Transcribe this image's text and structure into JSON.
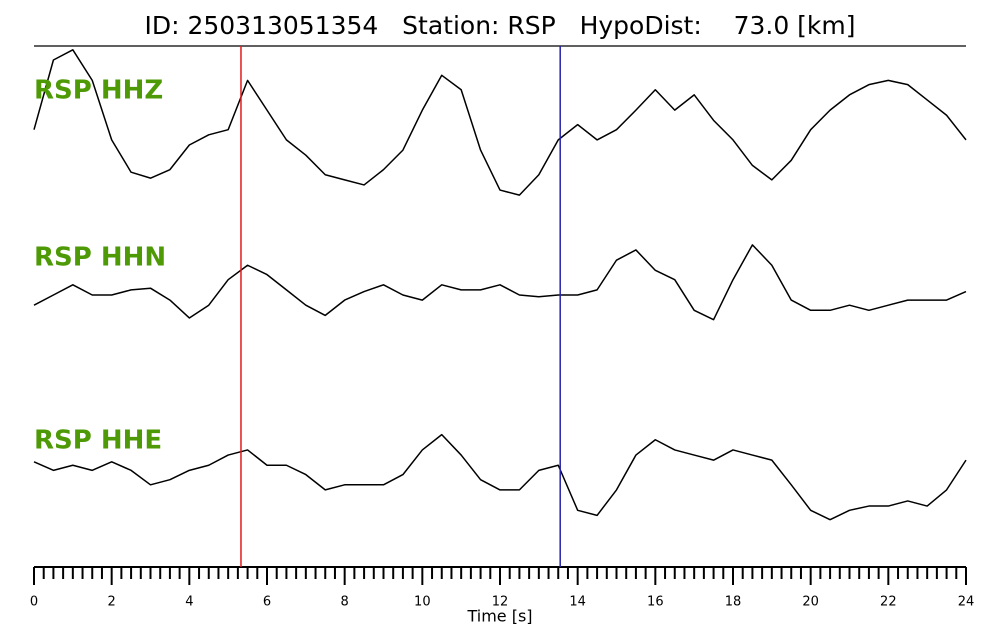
{
  "chart_data": {
    "type": "line",
    "title": "ID: 250313051354   Station: RSP   HypoDist:    73.0 [km]",
    "xlabel": "Time [s]",
    "layout": "stacked",
    "label_color": "#4e9a06",
    "xlim": [
      0,
      24
    ],
    "xticks": [
      0,
      2,
      4,
      6,
      8,
      10,
      12,
      14,
      16,
      18,
      20,
      22,
      24
    ],
    "xminor": 0.25,
    "ylim": [
      -1,
      1
    ],
    "markers": [
      {
        "x": 5.33,
        "color": "#e41a1c"
      },
      {
        "x": 13.55,
        "color": "#2222aa"
      }
    ],
    "x": [
      0,
      0.5,
      1,
      1.5,
      2,
      2.5,
      3,
      3.5,
      4,
      4.5,
      5,
      5.5,
      6,
      6.5,
      7,
      7.5,
      8,
      8.5,
      9,
      9.5,
      10,
      10.5,
      11,
      11.5,
      12,
      12.5,
      13,
      13.5,
      14,
      14.5,
      15,
      15.5,
      16,
      16.5,
      17,
      17.5,
      18,
      18.5,
      19,
      19.5,
      20,
      20.5,
      21,
      21.5,
      22,
      22.5,
      23,
      23.5,
      24
    ],
    "series": [
      {
        "name": "RSP HHZ",
        "color": "#000000",
        "values": [
          -0.02,
          0.8,
          0.92,
          0.56,
          -0.14,
          -0.52,
          -0.59,
          -0.49,
          -0.2,
          -0.08,
          -0.02,
          0.56,
          0.21,
          -0.14,
          -0.32,
          -0.55,
          -0.61,
          -0.67,
          -0.49,
          -0.26,
          0.21,
          0.62,
          0.45,
          -0.26,
          -0.73,
          -0.79,
          -0.55,
          -0.14,
          0.04,
          -0.14,
          -0.02,
          0.21,
          0.45,
          0.21,
          0.39,
          0.09,
          -0.14,
          -0.44,
          -0.61,
          -0.38,
          -0.02,
          0.21,
          0.39,
          0.51,
          0.56,
          0.51,
          0.33,
          0.15,
          -0.14
        ]
      },
      {
        "name": "RSP HHN",
        "color": "#000000",
        "values": [
          -0.12,
          0,
          0.12,
          0,
          0,
          0.06,
          0.08,
          -0.06,
          -0.27,
          -0.12,
          0.18,
          0.35,
          0.24,
          0.06,
          -0.12,
          -0.24,
          -0.06,
          0.04,
          0.12,
          0,
          -0.06,
          0.12,
          0.06,
          0.06,
          0.12,
          0,
          -0.02,
          0,
          0,
          0.06,
          0.41,
          0.53,
          0.29,
          0.18,
          -0.18,
          -0.29,
          0.18,
          0.59,
          0.35,
          -0.06,
          -0.18,
          -0.18,
          -0.12,
          -0.18,
          -0.12,
          -0.06,
          -0.06,
          -0.06,
          0.04
        ]
      },
      {
        "name": "RSP HHE",
        "color": "#000000",
        "values": [
          0.19,
          0.09,
          0.15,
          0.09,
          0.19,
          0.09,
          -0.08,
          -0.02,
          0.09,
          0.15,
          0.27,
          0.33,
          0.15,
          0.15,
          0.04,
          -0.14,
          -0.08,
          -0.08,
          -0.08,
          0.04,
          0.33,
          0.51,
          0.27,
          -0.02,
          -0.14,
          -0.14,
          0.09,
          0.15,
          -0.38,
          -0.44,
          -0.14,
          0.27,
          0.45,
          0.33,
          0.27,
          0.21,
          0.33,
          0.27,
          0.21,
          -0.08,
          -0.38,
          -0.49,
          -0.38,
          -0.33,
          -0.33,
          -0.27,
          -0.33,
          -0.14,
          0.21
        ]
      }
    ]
  }
}
